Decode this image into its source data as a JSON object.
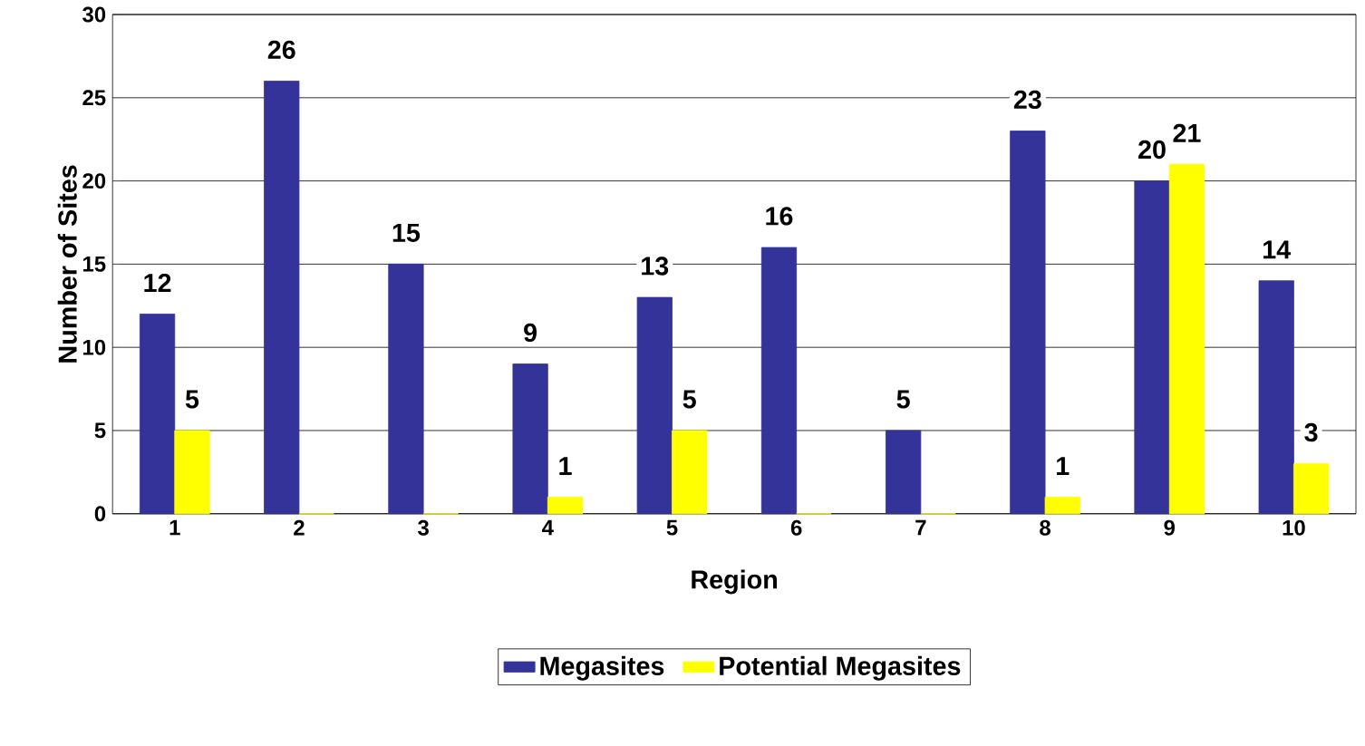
{
  "chart_data": {
    "type": "bar",
    "xlabel": "Region",
    "ylabel": "Number of Sites",
    "categories": [
      "1",
      "2",
      "3",
      "4",
      "5",
      "6",
      "7",
      "8",
      "9",
      "10"
    ],
    "series": [
      {
        "name": "Megasites",
        "color": "#333399",
        "values": [
          12,
          26,
          15,
          9,
          13,
          16,
          5,
          23,
          20,
          14
        ],
        "value_labels": [
          "12",
          "26",
          "15",
          "9",
          "13",
          "16",
          "5",
          "23",
          "20",
          "14"
        ]
      },
      {
        "name": "Potential Megasites",
        "color": "#ffff00",
        "values": [
          5,
          0,
          0,
          1,
          5,
          0,
          0,
          1,
          21,
          3
        ],
        "value_labels": [
          "5",
          null,
          null,
          "1",
          "5",
          null,
          null,
          "1",
          "21",
          "3"
        ]
      }
    ],
    "ylim": [
      0,
      30
    ],
    "yticks": [
      0,
      5,
      10,
      15,
      20,
      25,
      30
    ],
    "grid": "y",
    "legend": "bottom"
  }
}
